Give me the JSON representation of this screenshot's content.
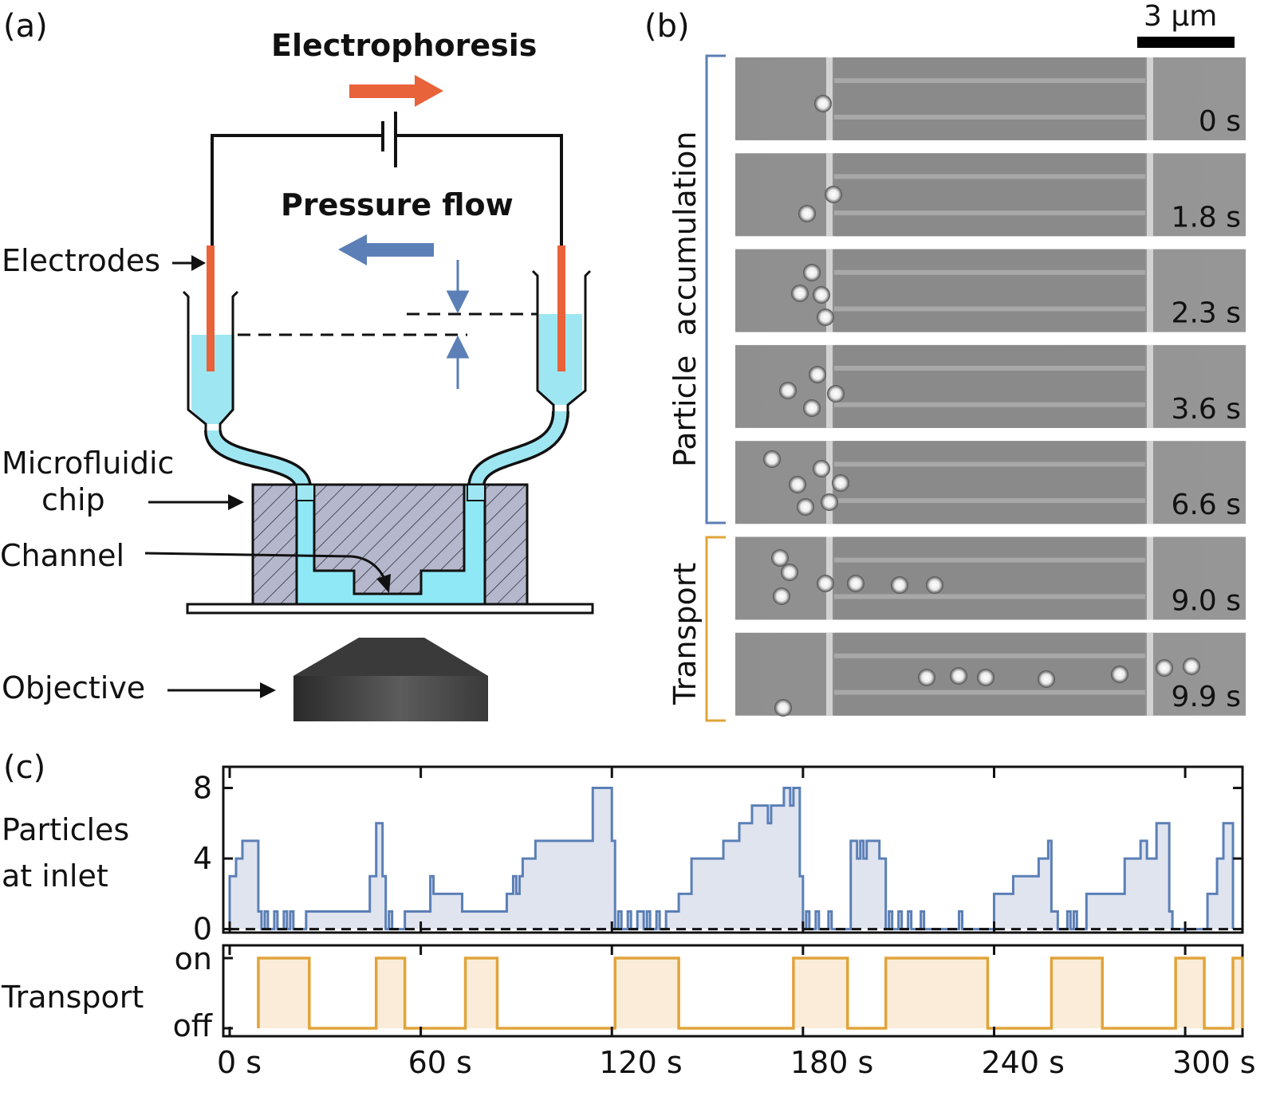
{
  "panels": {
    "a": {
      "label": "(a)",
      "electrophoresis": "Electrophoresis",
      "pressure_flow": "Pressure flow",
      "electrodes": "Electrodes",
      "microfluidic_chip": [
        "Microfluidic",
        "chip"
      ],
      "channel": "Channel",
      "objective": "Objective"
    },
    "b": {
      "label": "(b)",
      "scale_bar": "3 µm",
      "group_accumulation": "Particle  accumulation",
      "group_transport": "Transport",
      "frames": [
        {
          "time": "0 s",
          "particles": [
            [
              1032,
              130
            ]
          ]
        },
        {
          "time": "1.8 s",
          "particles": [
            [
              1012,
              268
            ],
            [
              1045,
              244
            ]
          ]
        },
        {
          "time": "2.3 s",
          "particles": [
            [
              1018,
              342
            ],
            [
              1003,
              368
            ],
            [
              1030,
              370
            ],
            [
              1035,
              398
            ]
          ]
        },
        {
          "time": "3.6 s",
          "particles": [
            [
              988,
              490
            ],
            [
              1025,
              470
            ],
            [
              1018,
              512
            ],
            [
              1048,
              494
            ]
          ]
        },
        {
          "time": "6.6 s",
          "particles": [
            [
              968,
              576
            ],
            [
              1000,
              608
            ],
            [
              1030,
              588
            ],
            [
              1010,
              636
            ],
            [
              1040,
              630
            ],
            [
              1054,
              606
            ]
          ]
        },
        {
          "time": "9.0 s",
          "particles": [
            [
              978,
              700
            ],
            [
              990,
              718
            ],
            [
              980,
              748
            ],
            [
              1035,
              732
            ],
            [
              1073,
              732
            ],
            [
              1128,
              734
            ],
            [
              1172,
              734
            ]
          ]
        },
        {
          "time": "9.9 s",
          "particles": [
            [
              982,
              888
            ],
            [
              1162,
              850
            ],
            [
              1202,
              848
            ],
            [
              1236,
              850
            ],
            [
              1312,
              852
            ],
            [
              1404,
              846
            ],
            [
              1460,
              838
            ],
            [
              1494,
              836
            ]
          ]
        }
      ]
    },
    "c": {
      "label": "(c)",
      "chart_data": {
        "type": "line",
        "xlabel": "",
        "x_ticks": [
          "0 s",
          "60 s",
          "120 s",
          "180 s",
          "240 s",
          "300 s"
        ],
        "x_tick_values": [
          0,
          60,
          120,
          180,
          240,
          300
        ],
        "xlim": [
          -2,
          318
        ],
        "series": [
          {
            "name": "Particles at inlet",
            "ylabel": [
              "Particles",
              "at inlet"
            ],
            "ylim": [
              -0.2,
              9.2
            ],
            "y_ticks": [
              0,
              4,
              8
            ],
            "baseline": 0,
            "color": "#5b7fb6",
            "fill": "#dfe4ef",
            "steps": [
              [
                0,
                3
              ],
              [
                2,
                4
              ],
              [
                4,
                5
              ],
              [
                9,
                1
              ],
              [
                10,
                0
              ],
              [
                11,
                1
              ],
              [
                12,
                0
              ],
              [
                14,
                1
              ],
              [
                15,
                0
              ],
              [
                17,
                1
              ],
              [
                18,
                0
              ],
              [
                19,
                1
              ],
              [
                20,
                0
              ],
              [
                24,
                1
              ],
              [
                44,
                3
              ],
              [
                46,
                6
              ],
              [
                48,
                3
              ],
              [
                49,
                0
              ],
              [
                50,
                1
              ],
              [
                51,
                0
              ],
              [
                55,
                1
              ],
              [
                63,
                3
              ],
              [
                64,
                2
              ],
              [
                73,
                1
              ],
              [
                77,
                1
              ],
              [
                78,
                1
              ],
              [
                79,
                1
              ],
              [
                87,
                2
              ],
              [
                89,
                3
              ],
              [
                90,
                2
              ],
              [
                91,
                3
              ],
              [
                92,
                4
              ],
              [
                96,
                5
              ],
              [
                114,
                8
              ],
              [
                120,
                5
              ],
              [
                121,
                0
              ],
              [
                122,
                1
              ],
              [
                123,
                0
              ],
              [
                125,
                1
              ],
              [
                126,
                0
              ],
              [
                128,
                1
              ],
              [
                130,
                0
              ],
              [
                131,
                1
              ],
              [
                132,
                0
              ],
              [
                134,
                1
              ],
              [
                135,
                0
              ],
              [
                137,
                1
              ],
              [
                141,
                2
              ],
              [
                145,
                4
              ],
              [
                155,
                5
              ],
              [
                160,
                6
              ],
              [
                164,
                7
              ],
              [
                169,
                6
              ],
              [
                170,
                7
              ],
              [
                174,
                8
              ],
              [
                176,
                7
              ],
              [
                177,
                8
              ],
              [
                179,
                3
              ],
              [
                180,
                0
              ],
              [
                181,
                1
              ],
              [
                182,
                0
              ],
              [
                184,
                1
              ],
              [
                185,
                0
              ],
              [
                188,
                1
              ],
              [
                189,
                0
              ],
              [
                195,
                5
              ],
              [
                197,
                4
              ],
              [
                198,
                5
              ],
              [
                199,
                4
              ],
              [
                200,
                5
              ],
              [
                204,
                4
              ],
              [
                206,
                0
              ],
              [
                207,
                1
              ],
              [
                208,
                0
              ],
              [
                210,
                1
              ],
              [
                211,
                0
              ],
              [
                213,
                1
              ],
              [
                214,
                0
              ],
              [
                217,
                1
              ],
              [
                218,
                0
              ],
              [
                229,
                1
              ],
              [
                230,
                0
              ],
              [
                240,
                2
              ],
              [
                246,
                3
              ],
              [
                254,
                4
              ],
              [
                257,
                5
              ],
              [
                258,
                1
              ],
              [
                260,
                0
              ],
              [
                263,
                1
              ],
              [
                264,
                0
              ],
              [
                265,
                1
              ],
              [
                266,
                0
              ],
              [
                269,
                2
              ],
              [
                281,
                4
              ],
              [
                286,
                5
              ],
              [
                288,
                4
              ],
              [
                291,
                6
              ],
              [
                295,
                1
              ],
              [
                296,
                0
              ],
              [
                307,
                2
              ],
              [
                310,
                4
              ],
              [
                312,
                6
              ],
              [
                315,
                0
              ]
            ]
          },
          {
            "name": "Transport",
            "ylabel": [
              "Transport"
            ],
            "y_ticks": [
              "off",
              "on"
            ],
            "color": "#e0a43a",
            "fill": "#faecd8",
            "intervals": [
              [
                9,
                25
              ],
              [
                46,
                55
              ],
              [
                74,
                84
              ],
              [
                121,
                141
              ],
              [
                177,
                194
              ],
              [
                206,
                238
              ],
              [
                258,
                274
              ],
              [
                297,
                306
              ],
              [
                315,
                318
              ]
            ]
          }
        ],
        "grid": false
      }
    }
  }
}
